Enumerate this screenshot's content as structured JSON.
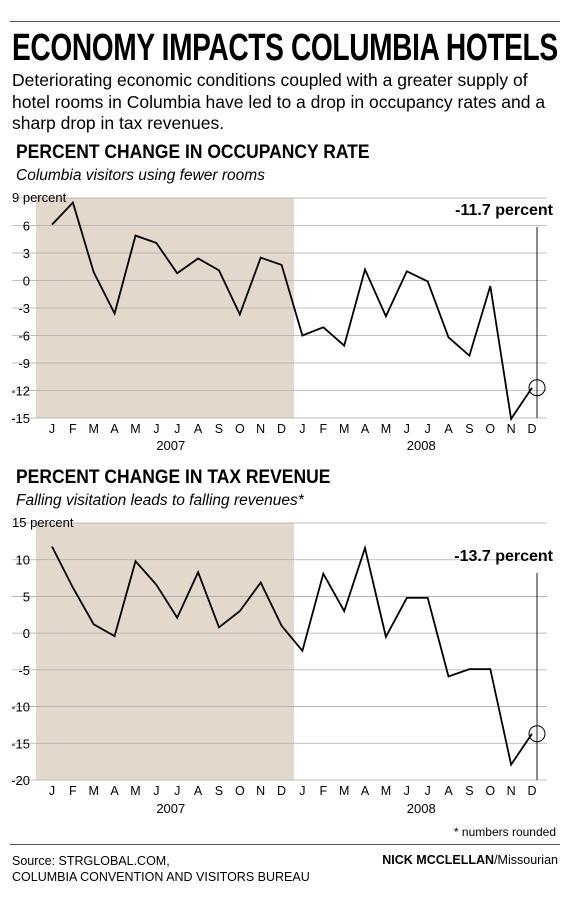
{
  "headline": "ECONOMY IMPACTS COLUMBIA HOTELS",
  "intro": "Deteriorating economic conditions coupled with a greater supply of hotel rooms in Columbia have led to a drop in occupancy rates and a sharp drop in tax revenues.",
  "charts": {
    "occupancy": {
      "title": "PERCENT CHANGE IN OCCUPANCY RATE",
      "subtitle": "Columbia visitors using fewer rooms",
      "unit_label": "9 percent",
      "callout": "-11.7 percent"
    },
    "tax": {
      "title": "PERCENT CHANGE IN TAX REVENUE",
      "subtitle": "Falling visitation leads to falling revenues*",
      "unit_label": "15 percent",
      "callout": "-13.7 percent"
    }
  },
  "footnote": "* numbers rounded",
  "source_line1": "Source: STRGLOBAL.COM,",
  "source_line2": "COLUMBIA CONVENTION AND VISITORS BUREAU",
  "credit_name": "NICK MCCLELLAN",
  "credit_org": "/Missourian",
  "colors": {
    "shade": "#e3d8cc",
    "gridline": "#aaaaaa",
    "line": "#000000"
  },
  "chart_data": [
    {
      "type": "line",
      "title": "PERCENT CHANGE IN OCCUPANCY RATE",
      "subtitle": "Columbia visitors using fewer rooms",
      "x": [
        "J",
        "F",
        "M",
        "A",
        "M",
        "J",
        "J",
        "A",
        "S",
        "O",
        "N",
        "D",
        "J",
        "F",
        "M",
        "A",
        "M",
        "J",
        "J",
        "A",
        "S",
        "O",
        "N",
        "D"
      ],
      "year_labels": [
        "2007",
        "2008"
      ],
      "shaded_year": "2007",
      "values": [
        6.1,
        8.5,
        0.9,
        -3.6,
        4.9,
        4.1,
        0.8,
        2.4,
        1.1,
        -3.7,
        2.5,
        1.7,
        -6.0,
        -5.1,
        -7.1,
        1.2,
        -3.9,
        1.0,
        -0.1,
        -6.2,
        -8.2,
        -0.6,
        -15.1,
        -11.7
      ],
      "yticks": [
        9,
        6,
        3,
        0,
        -3,
        -6,
        -9,
        -12,
        -15
      ],
      "ytick_labels": [
        "9 percent",
        "6",
        "3",
        "0",
        "-3",
        "-6",
        "-9",
        "-12",
        "-15"
      ],
      "ylim": [
        -15,
        9
      ],
      "grid": true,
      "annotation": {
        "label": "-11.7 percent",
        "value": -11.7,
        "month": "D",
        "year": "2008"
      }
    },
    {
      "type": "line",
      "title": "PERCENT CHANGE IN TAX REVENUE",
      "subtitle": "Falling visitation leads to falling revenues*",
      "x": [
        "J",
        "F",
        "M",
        "A",
        "M",
        "J",
        "J",
        "A",
        "S",
        "O",
        "N",
        "D",
        "J",
        "F",
        "M",
        "A",
        "M",
        "J",
        "J",
        "A",
        "S",
        "O",
        "N",
        "D"
      ],
      "year_labels": [
        "2007",
        "2008"
      ],
      "shaded_year": "2007",
      "values": [
        11.8,
        6.2,
        1.2,
        -0.4,
        9.8,
        6.6,
        2.1,
        8.3,
        0.8,
        3.0,
        6.9,
        1.0,
        -2.4,
        8.1,
        3.0,
        11.6,
        -0.5,
        4.8,
        4.8,
        -5.9,
        -4.9,
        -4.9,
        -17.9,
        -13.7
      ],
      "yticks": [
        15,
        10,
        5,
        0,
        -5,
        -10,
        -15,
        -20
      ],
      "ytick_labels": [
        "15 percent",
        "10",
        "5",
        "0",
        "-5",
        "-10",
        "-15",
        "-20"
      ],
      "ylim": [
        -20,
        15
      ],
      "grid": true,
      "annotation": {
        "label": "-13.7 percent",
        "value": -13.7,
        "month": "D",
        "year": "2008"
      }
    }
  ]
}
